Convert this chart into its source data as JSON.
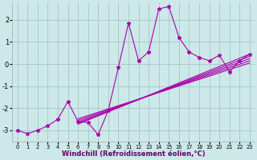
{
  "background_color": "#cce8e8",
  "grid_color": "#aacccc",
  "line_color": "#aa00aa",
  "xlim": [
    -0.5,
    23.5
  ],
  "ylim": [
    -3.5,
    2.8
  ],
  "xlabel": "Windchill (Refroidissement éolien,°C)",
  "xlabel_fontsize": 6.0,
  "yticks": [
    -3,
    -2,
    -1,
    0,
    1,
    2
  ],
  "xticks": [
    0,
    1,
    2,
    3,
    4,
    5,
    6,
    7,
    8,
    9,
    10,
    11,
    12,
    13,
    14,
    15,
    16,
    17,
    18,
    19,
    20,
    21,
    22,
    23
  ],
  "main_x": [
    0,
    1,
    2,
    3,
    4,
    5,
    6,
    7,
    8,
    9,
    10,
    11,
    12,
    13,
    14,
    15,
    16,
    17,
    18,
    19,
    20,
    21,
    22,
    23
  ],
  "main_y": [
    -3.0,
    -3.15,
    -3.0,
    -2.8,
    -2.5,
    -1.7,
    -2.6,
    -2.65,
    -3.2,
    -2.1,
    -0.15,
    1.85,
    0.15,
    0.55,
    2.5,
    2.6,
    1.2,
    0.55,
    0.3,
    0.15,
    0.4,
    -0.35,
    0.15,
    0.45
  ],
  "straight_lines": [
    {
      "x0": 6,
      "y0": -2.72,
      "x1": 23,
      "y1": 0.45
    },
    {
      "x0": 6,
      "y0": -2.68,
      "x1": 23,
      "y1": 0.35
    },
    {
      "x0": 6,
      "y0": -2.62,
      "x1": 23,
      "y1": 0.25
    },
    {
      "x0": 6,
      "y0": -2.55,
      "x1": 23,
      "y1": 0.15
    },
    {
      "x0": 6,
      "y0": -2.48,
      "x1": 23,
      "y1": 0.05
    }
  ]
}
